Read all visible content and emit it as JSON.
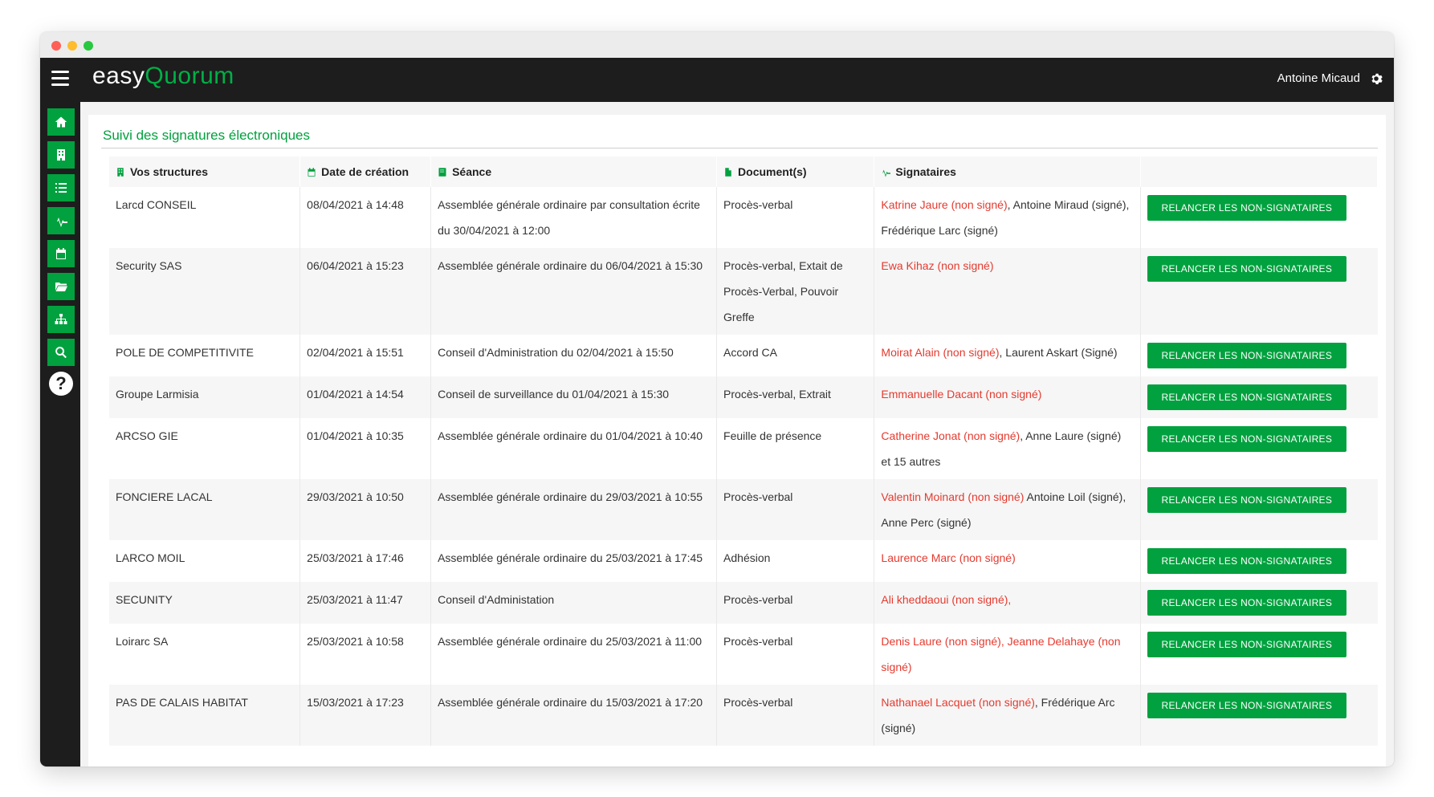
{
  "app": {
    "logo_part1": "easy",
    "logo_part2": "Quorum",
    "user_name": "Antoine Micaud"
  },
  "sidebar": {
    "items": [
      "home-icon",
      "building-icon",
      "list-icon",
      "signature-icon",
      "calendar-icon",
      "folder-icon",
      "sitemap-icon",
      "search-icon"
    ],
    "help_label": "?"
  },
  "page": {
    "title": "Suivi des signatures électroniques"
  },
  "table": {
    "headers": {
      "structures": "Vos structures",
      "date": "Date de création",
      "seance": "Séance",
      "documents": "Document(s)",
      "signataires": "Signataires"
    },
    "button_label": "RELANCER LES NON-SIGNATAIRES",
    "rows": [
      {
        "structure": "Larcd CONSEIL",
        "date": "08/04/2021 à 14:48",
        "seance": "Assemblée générale ordinaire par consultation écrite du 30/04/2021 à 12:00",
        "documents": "Procès-verbal",
        "sig_red": "Katrine Jaure (non signé)",
        "sig_rest": ", Antoine Miraud (signé), Frédérique Larc (signé)"
      },
      {
        "structure": "Security SAS",
        "date": "06/04/2021 à 15:23",
        "seance": "Assemblée générale ordinaire du 06/04/2021 à 15:30",
        "documents": "Procès-verbal, Extait de Procès-Verbal, Pouvoir Greffe",
        "sig_red": "Ewa Kihaz (non signé)",
        "sig_rest": ""
      },
      {
        "structure": "POLE DE COMPETITIVITE",
        "date": "02/04/2021 à 15:51",
        "seance": "Conseil d'Administration du 02/04/2021 à 15:50",
        "documents": "Accord CA",
        "sig_red": "Moirat Alain (non signé)",
        "sig_rest": ", Laurent Askart (Signé)"
      },
      {
        "structure": "Groupe Larmisia",
        "date": "01/04/2021 à 14:54",
        "seance": "Conseil de surveillance du 01/04/2021 à 15:30",
        "documents": "Procès-verbal, Extrait",
        "sig_red": "Emmanuelle Dacant (non signé)",
        "sig_rest": ""
      },
      {
        "structure": "ARCSO GIE",
        "date": "01/04/2021 à 10:35",
        "seance": "Assemblée générale ordinaire du 01/04/2021 à 10:40",
        "documents": "Feuille de présence",
        "sig_red": "Catherine Jonat (non signé)",
        "sig_rest": ", Anne Laure (signé) et 15 autres"
      },
      {
        "structure": "FONCIERE LACAL",
        "date": "29/03/2021 à 10:50",
        "seance": "Assemblée générale ordinaire du 29/03/2021 à 10:55",
        "documents": "Procès-verbal",
        "sig_red": "Valentin Moinard (non signé)",
        "sig_rest": " Antoine Loil (signé), Anne Perc (signé)"
      },
      {
        "structure": "LARCO MOIL",
        "date": "25/03/2021 à 17:46",
        "seance": "Assemblée générale ordinaire du 25/03/2021 à 17:45",
        "documents": "Adhésion",
        "sig_red": "Laurence Marc (non signé)",
        "sig_rest": ""
      },
      {
        "structure": "SECUNITY",
        "date": "25/03/2021 à 11:47",
        "seance": "Conseil d'Administation",
        "documents": "Procès-verbal",
        "sig_red": "Ali kheddaoui (non signé),",
        "sig_rest": ""
      },
      {
        "structure": "Loirarc SA",
        "date": "25/03/2021 à 10:58",
        "seance": "Assemblée générale ordinaire du 25/03/2021 à 11:00",
        "documents": "Procès-verbal",
        "sig_red": "Denis Laure (non signé), Jeanne Delahaye (non signé)",
        "sig_rest": ""
      },
      {
        "structure": "PAS DE CALAIS HABITAT",
        "date": "15/03/2021 à 17:23",
        "seance": "Assemblée générale ordinaire du 15/03/2021 à 17:20",
        "documents": "Procès-verbal",
        "sig_red": "Nathanael Lacquet (non signé)",
        "sig_rest": ", Frédérique Arc (signé)"
      }
    ]
  },
  "colors": {
    "accent": "#00a13e",
    "dark": "#1d1d1d",
    "unsigned": "#e53a2f"
  }
}
